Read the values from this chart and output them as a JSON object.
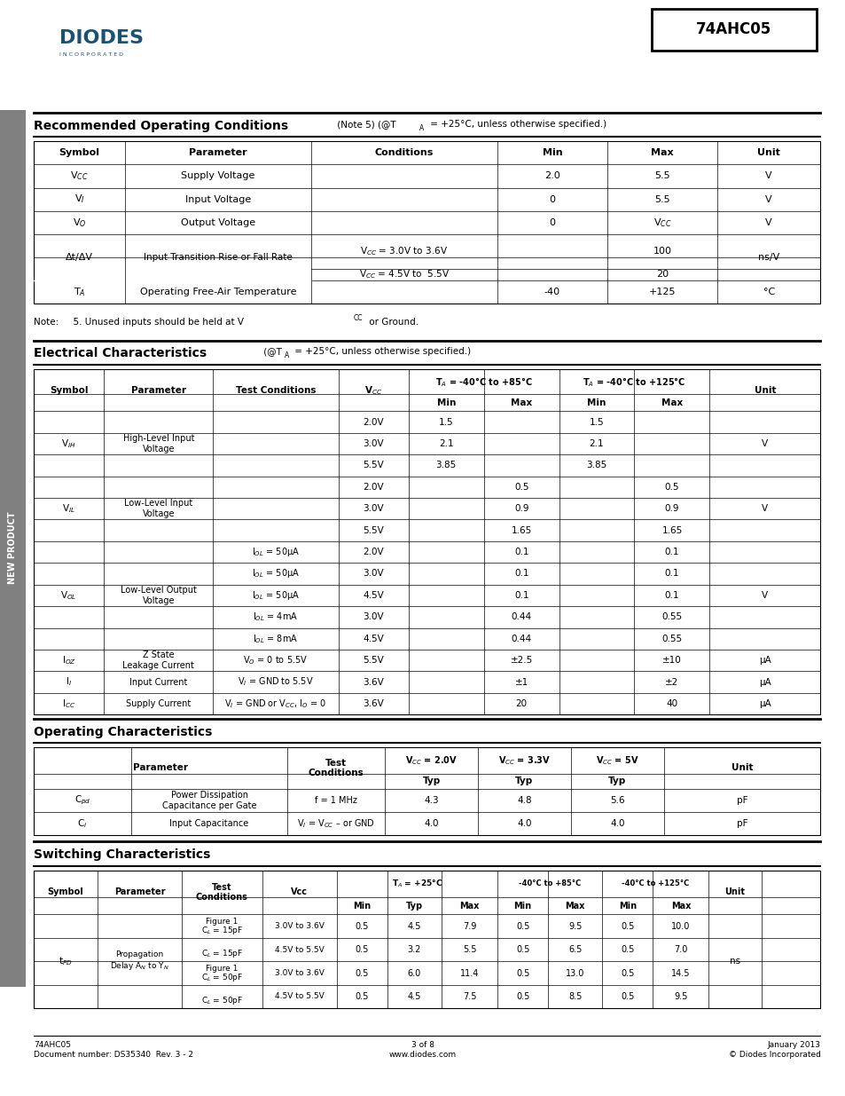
{
  "page_title": "74AHC05",
  "bg_color": "#ffffff",
  "sidebar_color": "#808080",
  "sidebar_text": "NEW PRODUCT",
  "footer_left": "74AHC05\nDocument number: DS35340  Rev. 3 - 2",
  "footer_center": "3 of 8\nwww.diodes.com",
  "footer_right": "January 2013\n© Diodes Incorporated"
}
